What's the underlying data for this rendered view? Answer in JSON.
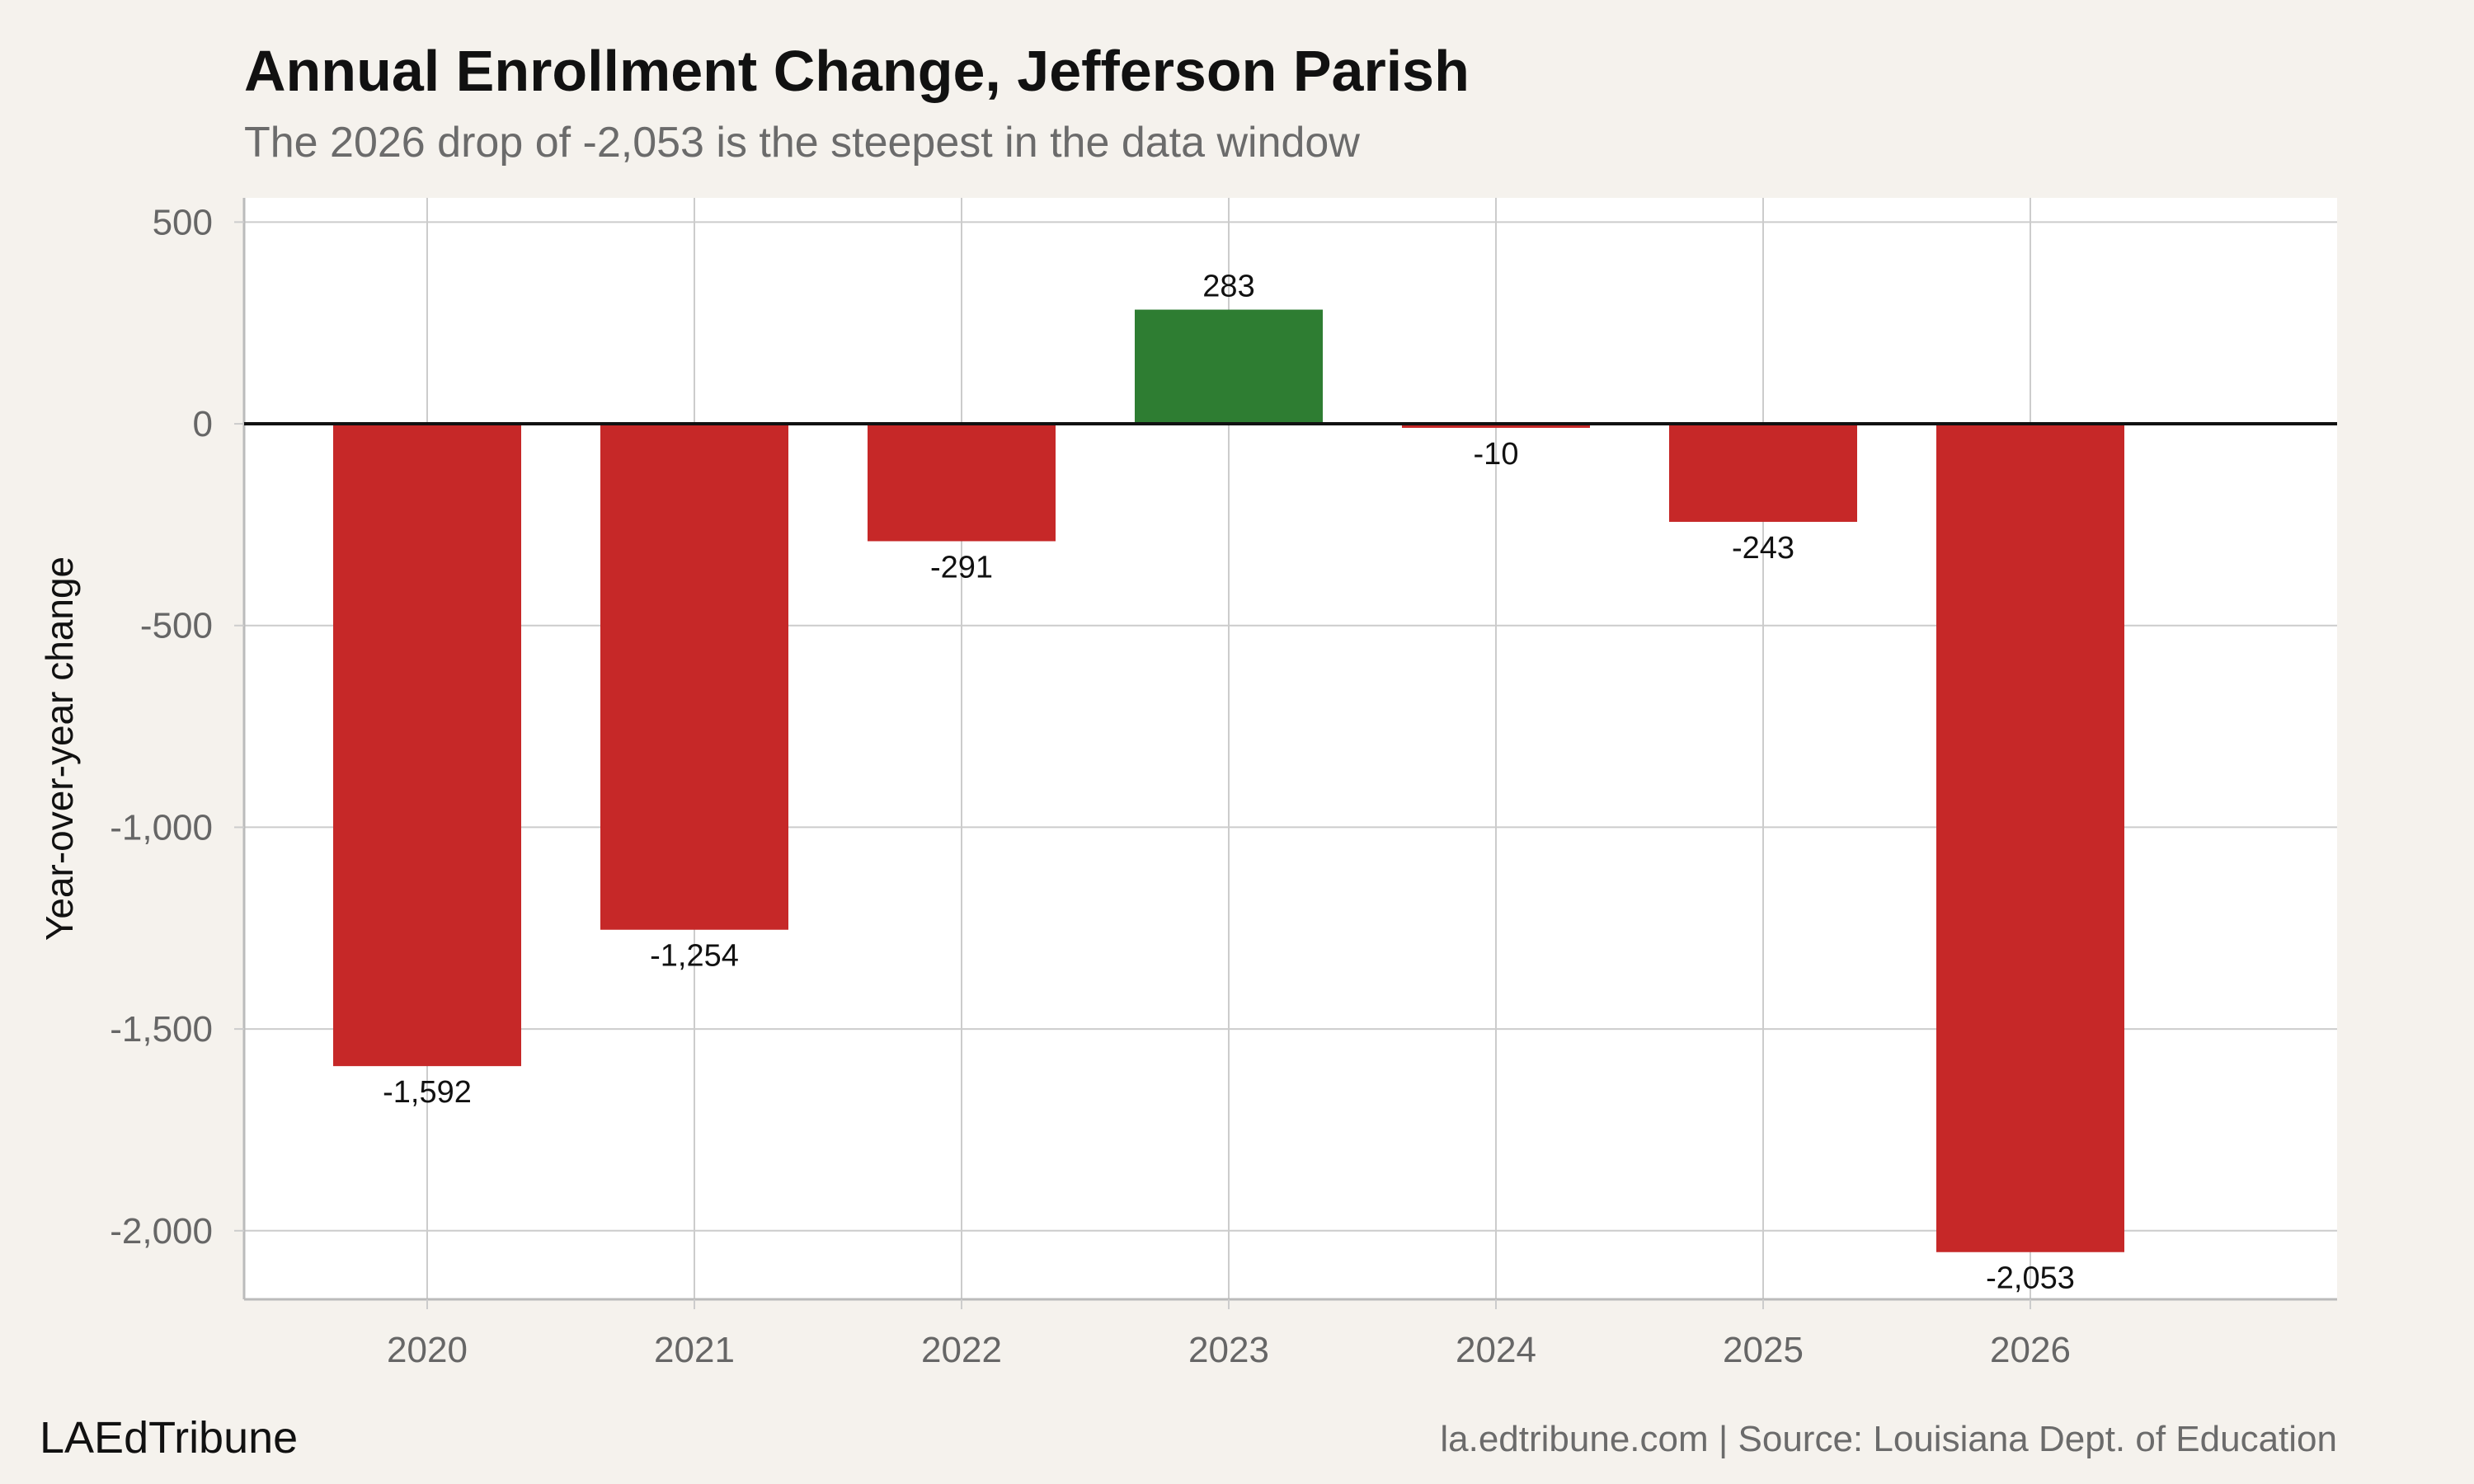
{
  "chart_data": {
    "type": "bar",
    "title": "Annual Enrollment Change, Jefferson Parish",
    "subtitle": "The 2026 drop of -2,053 is the steepest in the data window",
    "xlabel": "",
    "ylabel": "Year-over-year change",
    "categories": [
      "2020",
      "2021",
      "2022",
      "2023",
      "2024",
      "2025",
      "2026"
    ],
    "values": [
      -1592,
      -1254,
      -291,
      283,
      -10,
      -243,
      -2053
    ],
    "data_labels": [
      "-1,592",
      "-1,254",
      "-291",
      "283",
      "-10",
      "-243",
      "-2,053"
    ],
    "ylim": [
      -2170,
      560
    ],
    "yticks": [
      500,
      0,
      -500,
      -1000,
      -1500,
      -2000
    ],
    "ytick_labels": [
      "500",
      "0",
      "-500",
      "-1,000",
      "-1,500",
      "-2,000"
    ],
    "grid": true,
    "legend": "none",
    "colors": {
      "positive": "#2e7d32",
      "negative": "#c62828",
      "zero_line": "#111111",
      "grid": "#cccccc"
    }
  },
  "footer": {
    "brand": "LAEdTribune",
    "source": "la.edtribune.com | Source: Louisiana Dept. of Education"
  }
}
